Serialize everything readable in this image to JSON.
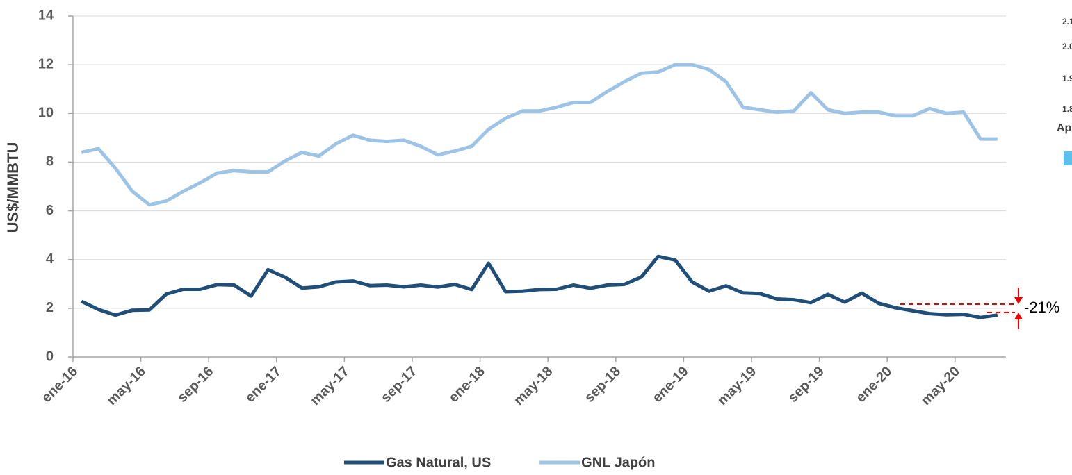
{
  "chart_data": {
    "type": "line",
    "y_label": "US$/MMBTU",
    "categories": [
      "ene-16",
      null,
      null,
      null,
      "may-16",
      null,
      null,
      null,
      "sep-16",
      null,
      null,
      null,
      "ene-17",
      null,
      null,
      null,
      "may-17",
      null,
      null,
      null,
      "sep-17",
      null,
      null,
      null,
      "ene-18",
      null,
      null,
      null,
      "may-18",
      null,
      null,
      null,
      "sep-18",
      null,
      null,
      null,
      "ene-19",
      null,
      null,
      null,
      "may-19",
      null,
      null,
      null,
      "sep-19",
      null,
      null,
      null,
      "ene-20",
      null,
      null,
      null,
      "may-20",
      null,
      null
    ],
    "series": [
      {
        "name": "Gas Natural, US",
        "color": "#1f4e79",
        "values": [
          2.28,
          1.95,
          1.72,
          1.92,
          1.93,
          2.58,
          2.78,
          2.78,
          2.97,
          2.95,
          2.5,
          3.58,
          3.27,
          2.83,
          2.88,
          3.08,
          3.12,
          2.93,
          2.95,
          2.88,
          2.95,
          2.87,
          2.98,
          2.77,
          3.85,
          2.68,
          2.7,
          2.77,
          2.78,
          2.95,
          2.82,
          2.95,
          2.98,
          3.28,
          4.13,
          3.98,
          3.08,
          2.7,
          2.92,
          2.63,
          2.6,
          2.38,
          2.35,
          2.23,
          2.57,
          2.25,
          2.62,
          2.2,
          2.02,
          1.9,
          1.78,
          1.73,
          1.75,
          1.62,
          1.72
        ]
      },
      {
        "name": "GNL Japón",
        "color": "#9dc3e6",
        "values": [
          8.4,
          8.55,
          7.75,
          6.8,
          6.25,
          6.4,
          6.8,
          7.15,
          7.55,
          7.65,
          7.6,
          7.6,
          8.05,
          8.4,
          8.25,
          8.75,
          9.1,
          8.9,
          8.85,
          8.9,
          8.65,
          8.3,
          8.45,
          8.65,
          9.35,
          9.8,
          10.1,
          10.1,
          10.25,
          10.45,
          10.45,
          10.9,
          11.3,
          11.65,
          11.7,
          12.0,
          12.0,
          11.8,
          11.3,
          10.25,
          10.15,
          10.05,
          10.1,
          10.85,
          10.15,
          10.0,
          10.05,
          10.05,
          9.9,
          9.9,
          10.2,
          10.0,
          10.05,
          8.95,
          8.95
        ]
      }
    ],
    "ylim": [
      0,
      14
    ],
    "yticks": [
      0,
      2,
      4,
      6,
      8,
      10,
      12,
      14
    ],
    "grid": true,
    "annotation": "-21%",
    "legend": "bottom",
    "side_fragments": [
      "2.1",
      "2.0",
      "1.9",
      "1.8",
      "Ap"
    ]
  }
}
